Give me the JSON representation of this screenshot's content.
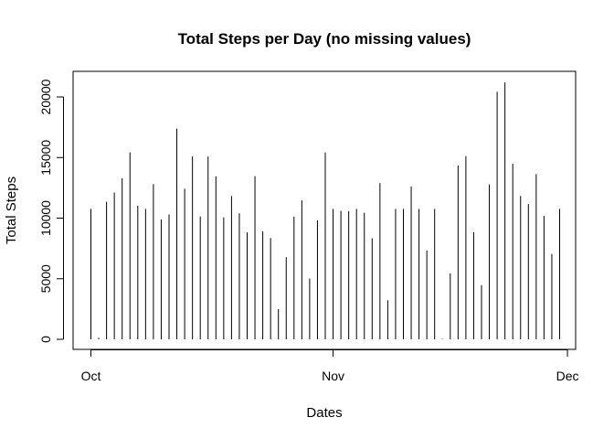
{
  "chart_data": {
    "type": "bar",
    "title": "Total Steps per Day (no missing values)",
    "xlabel": "Dates",
    "ylabel": "Total Steps",
    "start_date": "2012-10-01",
    "x_ticks": [
      {
        "label": "Oct",
        "date": "2012-10-01"
      },
      {
        "label": "Nov",
        "date": "2012-11-01"
      },
      {
        "label": "Dec",
        "date": "2012-12-01"
      }
    ],
    "y_ticks": [
      0,
      5000,
      10000,
      15000,
      20000
    ],
    "ylim": [
      0,
      21500
    ],
    "grid": false,
    "values": [
      10766,
      126,
      11352,
      12116,
      13294,
      15420,
      11015,
      10766,
      12811,
      9900,
      10304,
      17382,
      12426,
      15098,
      10139,
      15084,
      13452,
      10056,
      11829,
      10395,
      8821,
      13460,
      8918,
      8355,
      2492,
      6778,
      10119,
      11458,
      5018,
      9819,
      15414,
      10766,
      10600,
      10571,
      10766,
      10439,
      8334,
      12883,
      3219,
      10766,
      10766,
      12608,
      10765,
      7336,
      10766,
      41,
      5441,
      14339,
      15110,
      8841,
      4472,
      12787,
      20427,
      21194,
      14478,
      11834,
      11162,
      13646,
      10183,
      7047,
      10766
    ]
  }
}
